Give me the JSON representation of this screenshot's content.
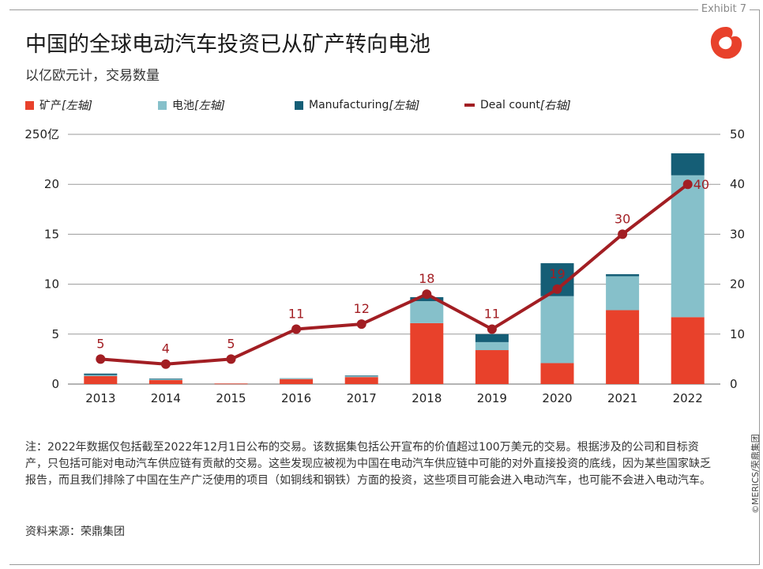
{
  "header": {
    "exhibit": "Exhibit 7",
    "title": "中国的全球电动汽车投资已从矿产转向电池",
    "subtitle": "以亿欧元计，交易数量"
  },
  "legend": {
    "mining": {
      "label": "矿产",
      "note": "[左轴]"
    },
    "battery": {
      "label": "电池",
      "note": "[左轴]"
    },
    "manufacturing": {
      "label": "Manufacturing",
      "note": "[左轴]"
    },
    "deal_count": {
      "label": "Deal count",
      "note": "[右轴]"
    }
  },
  "colors": {
    "mining": "#e8412b",
    "battery": "#86c0ca",
    "manufacturing": "#155e76",
    "deal_count": "#a21e23",
    "grid": "#9a9a9a",
    "logo": "#e8412b"
  },
  "chart_data": {
    "type": "bar",
    "stacked": true,
    "categories": [
      "2013",
      "2014",
      "2015",
      "2016",
      "2017",
      "2018",
      "2019",
      "2020",
      "2021",
      "2022"
    ],
    "series": [
      {
        "name": "矿产[左轴]",
        "axis": "left",
        "values": [
          0.8,
          0.4,
          0.05,
          0.5,
          0.7,
          6.1,
          3.4,
          2.1,
          7.4,
          6.7
        ]
      },
      {
        "name": "电池[左轴]",
        "axis": "left",
        "values": [
          0.1,
          0.1,
          0.0,
          0.1,
          0.1,
          2.2,
          0.8,
          6.7,
          3.4,
          14.2
        ]
      },
      {
        "name": "Manufacturing[左轴]",
        "axis": "left",
        "values": [
          0.15,
          0.05,
          0.0,
          0.0,
          0.05,
          0.4,
          0.8,
          3.3,
          0.2,
          2.2
        ]
      },
      {
        "name": "Deal count[右轴]",
        "axis": "right",
        "type": "line",
        "values": [
          5,
          4,
          5,
          11,
          12,
          18,
          11,
          19,
          30,
          40
        ]
      }
    ],
    "left_axis": {
      "ylim": [
        0,
        25
      ],
      "ticks": [
        "0",
        "5",
        "10",
        "15",
        "20",
        "250亿"
      ]
    },
    "right_axis": {
      "ylim": [
        0,
        50
      ],
      "ticks": [
        "0",
        "10",
        "20",
        "30",
        "40",
        "50"
      ]
    },
    "grid": true,
    "legend_position": "top"
  },
  "footer": {
    "note": "注：2022年数据仅包括截至2022年12月1日公布的交易。该数据集包括公开宣布的价值超过100万美元的交易。根据涉及的公司和目标资产，只包括可能对电动汽车供应链有贡献的交易。这些发现应被视为中国在电动汽车供应链中可能的对外直接投资的底线，因为某些国家缺乏报告，而且我们排除了中国在生产广泛使用的项目（如铜线和钢铁）方面的投资，这些项目可能会进入电动汽车，也可能不会进入电动汽车。",
    "source": "资料来源：荣鼎集团",
    "credit": "©MERICS/荣鼎集团"
  }
}
